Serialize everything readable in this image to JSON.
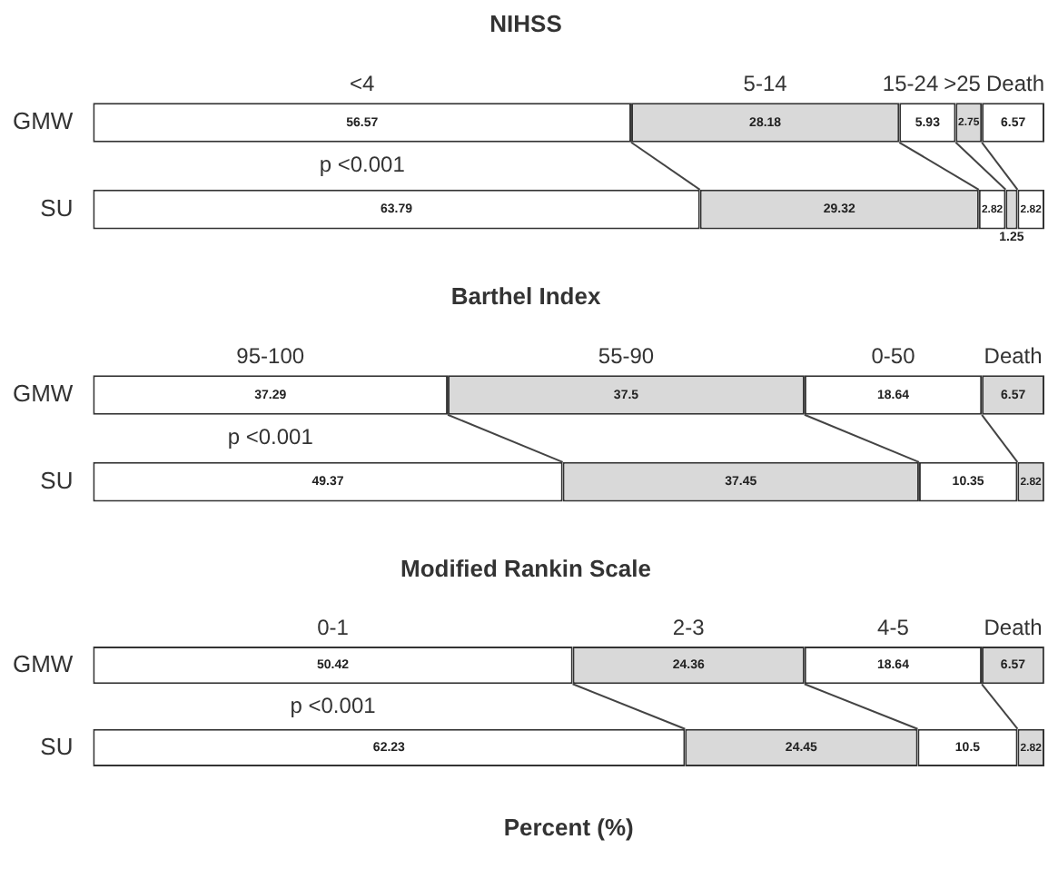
{
  "chart_data": [
    {
      "type": "bar",
      "orientation": "horizontal",
      "stacked": true,
      "title": "NIHSS",
      "categories": [
        "GMW",
        "SU"
      ],
      "xlim": [
        0,
        100
      ],
      "tick_labels": "y",
      "data_labels": true,
      "annotations": [
        "p <0.001"
      ],
      "series": [
        {
          "name": "<4",
          "color": "#ffffff",
          "values": [
            56.57,
            63.79
          ]
        },
        {
          "name": "5-14",
          "color": "#d9d9d9",
          "values": [
            28.18,
            29.32
          ]
        },
        {
          "name": "15-24",
          "color": "#ffffff",
          "values": [
            5.93,
            2.82
          ]
        },
        {
          "name": ">25",
          "color": "#d9d9d9",
          "values": [
            2.75,
            1.25
          ]
        },
        {
          "name": "Death",
          "color": "#ffffff",
          "values": [
            6.57,
            2.82
          ]
        }
      ]
    },
    {
      "type": "bar",
      "orientation": "horizontal",
      "stacked": true,
      "title": "Barthel Index",
      "categories": [
        "GMW",
        "SU"
      ],
      "xlim": [
        0,
        100
      ],
      "tick_labels": "y",
      "data_labels": true,
      "annotations": [
        "p <0.001"
      ],
      "series": [
        {
          "name": "95-100",
          "color": "#ffffff",
          "values": [
            37.29,
            49.37
          ]
        },
        {
          "name": "55-90",
          "color": "#d9d9d9",
          "values": [
            37.5,
            37.45
          ]
        },
        {
          "name": "0-50",
          "color": "#ffffff",
          "values": [
            18.64,
            10.35
          ]
        },
        {
          "name": "Death",
          "color": "#d9d9d9",
          "values": [
            6.57,
            2.82
          ]
        }
      ]
    },
    {
      "type": "bar",
      "orientation": "horizontal",
      "stacked": true,
      "title": "Modified Rankin Scale",
      "xlabel": "Percent (%)",
      "categories": [
        "GMW",
        "SU"
      ],
      "xlim": [
        0,
        100
      ],
      "tick_labels": "y",
      "data_labels": true,
      "annotations": [
        "p <0.001"
      ],
      "series": [
        {
          "name": "0-1",
          "color": "#ffffff",
          "values": [
            50.42,
            62.23
          ]
        },
        {
          "name": "2-3",
          "color": "#d9d9d9",
          "values": [
            24.36,
            24.45
          ]
        },
        {
          "name": "4-5",
          "color": "#ffffff",
          "values": [
            18.64,
            10.5
          ]
        },
        {
          "name": "Death",
          "color": "#d9d9d9",
          "values": [
            6.57,
            2.82
          ]
        }
      ]
    }
  ]
}
